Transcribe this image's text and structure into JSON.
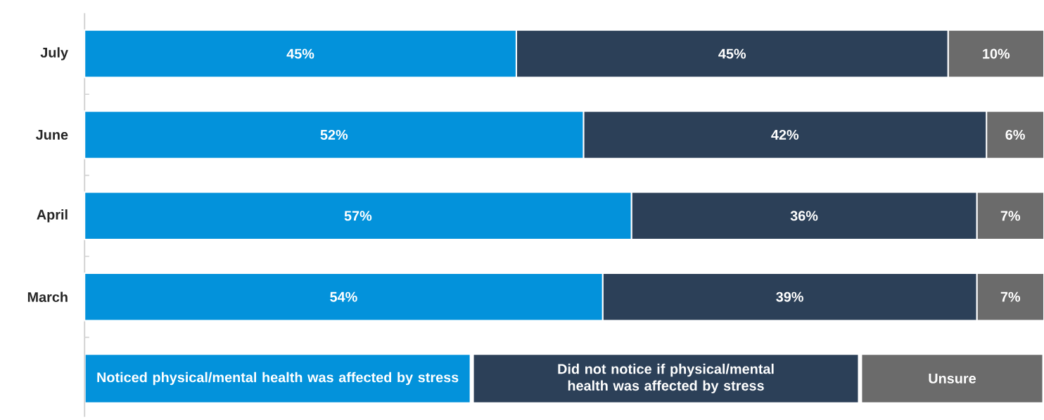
{
  "chart_data": {
    "type": "bar",
    "orientation": "horizontal",
    "stacked": true,
    "categories": [
      "July",
      "June",
      "April",
      "March"
    ],
    "tick_labels": "y",
    "legend": "bottom",
    "series": [
      {
        "name": "Noticed physical/mental health was affected by stress",
        "color": "#0392db",
        "values": [
          45,
          52,
          57,
          54
        ],
        "value_labels": [
          "45%",
          "52%",
          "57%",
          "54%"
        ]
      },
      {
        "name": "Did not notice if physical/mental health was affected by stress",
        "color": "#2c4058",
        "values": [
          45,
          42,
          36,
          39
        ],
        "value_labels": [
          "45%",
          "42%",
          "36%",
          "39%"
        ]
      },
      {
        "name": "Unsure",
        "color": "#6b6b6b",
        "values": [
          10,
          6,
          7,
          7
        ],
        "value_labels": [
          "10%",
          "6%",
          "7%",
          "7%"
        ]
      }
    ]
  }
}
